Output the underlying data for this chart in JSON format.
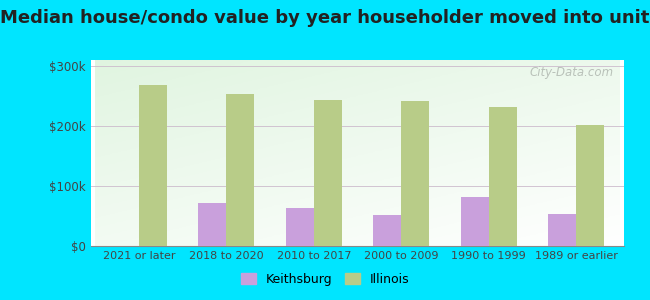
{
  "title": "Median house/condo value by year householder moved into unit",
  "categories": [
    "2021 or later",
    "2018 to 2020",
    "2010 to 2017",
    "2000 to 2009",
    "1990 to 1999",
    "1989 or earlier"
  ],
  "keithsburg_values": [
    0,
    72000,
    63000,
    52000,
    82000,
    53000
  ],
  "illinois_values": [
    268000,
    254000,
    243000,
    241000,
    232000,
    201000
  ],
  "keithsburg_color": "#c9a0dc",
  "illinois_color": "#b8cc88",
  "background_color": "#00e5ff",
  "ylim": [
    0,
    310000
  ],
  "yticks": [
    0,
    100000,
    200000,
    300000
  ],
  "ytick_labels": [
    "$0",
    "$100k",
    "$200k",
    "$300k"
  ],
  "bar_width": 0.32,
  "title_fontsize": 13,
  "legend_labels": [
    "Keithsburg",
    "Illinois"
  ],
  "watermark": "City-Data.com"
}
